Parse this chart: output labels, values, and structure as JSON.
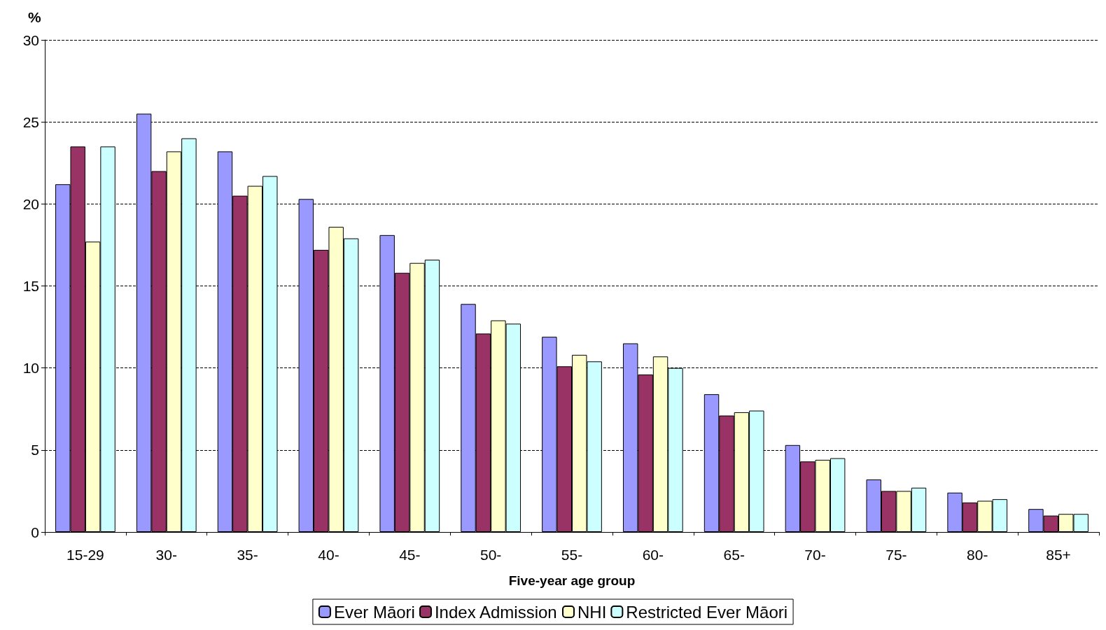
{
  "chart_data": {
    "type": "bar",
    "ylabel": "%",
    "xlabel": "Five-year age group",
    "categories": [
      "15-29",
      "30-",
      "35-",
      "40-",
      "45-",
      "50-",
      "55-",
      "60-",
      "65-",
      "70-",
      "75-",
      "80-",
      "85+"
    ],
    "series": [
      {
        "name": "Ever Māori",
        "color": "#9999ff",
        "values": [
          21.2,
          25.5,
          23.2,
          20.3,
          18.1,
          13.9,
          11.9,
          11.5,
          8.4,
          5.3,
          3.2,
          2.4,
          1.4
        ]
      },
      {
        "name": "Index Admission",
        "color": "#993366",
        "values": [
          23.5,
          22.0,
          20.5,
          17.2,
          15.8,
          12.1,
          10.1,
          9.6,
          7.1,
          4.3,
          2.5,
          1.8,
          1.0
        ]
      },
      {
        "name": "NHI",
        "color": "#ffffcc",
        "values": [
          17.7,
          23.2,
          21.1,
          18.6,
          16.4,
          12.9,
          10.8,
          10.7,
          7.3,
          4.4,
          2.5,
          1.9,
          1.1
        ]
      },
      {
        "name": "Restricted Ever Māori",
        "color": "#ccffff",
        "values": [
          23.5,
          24.0,
          21.7,
          17.9,
          16.6,
          12.7,
          10.4,
          10.0,
          7.4,
          4.5,
          2.7,
          2.0,
          1.1
        ]
      }
    ],
    "ylim": [
      0,
      30
    ],
    "yticks": [
      0,
      5,
      10,
      15,
      20,
      25,
      30
    ],
    "grid": "y",
    "legend": "bottom"
  }
}
